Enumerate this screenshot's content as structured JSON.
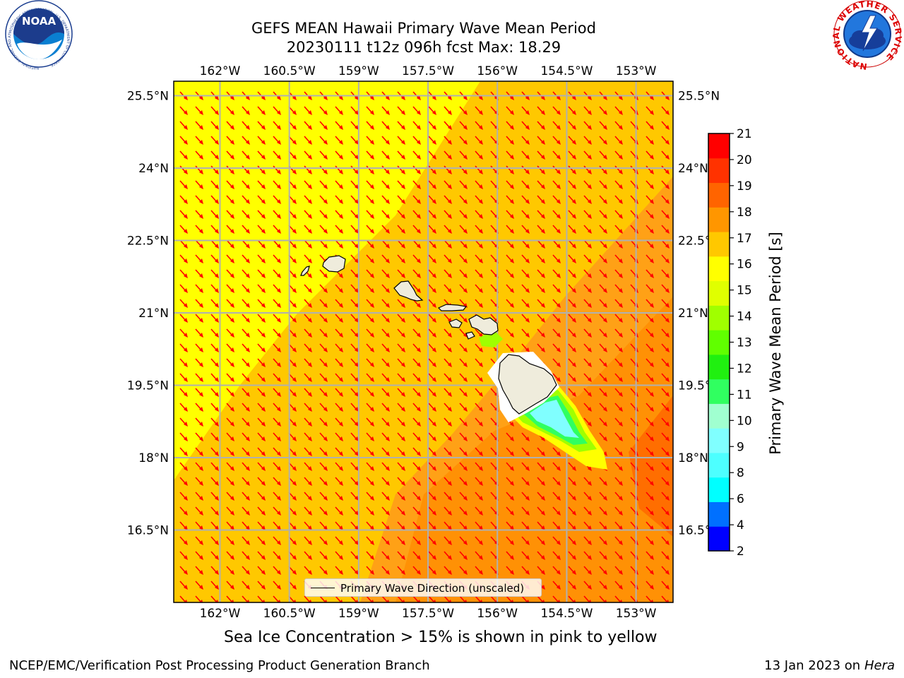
{
  "title": {
    "line1": "GEFS MEAN Hawaii Primary Wave Mean Period",
    "line2": "20230111 t12z 096h fcst   Max: 18.29"
  },
  "map": {
    "lon_labels": [
      "162°W",
      "160.5°W",
      "159°W",
      "157.5°W",
      "156°W",
      "154.5°W",
      "153°W"
    ],
    "lat_labels": [
      "25.5°N",
      "24°N",
      "22.5°N",
      "21°N",
      "19.5°N",
      "18°N",
      "16.5°N"
    ],
    "lon_range": [
      -163.0,
      -152.2
    ],
    "lat_range": [
      15.0,
      25.8
    ],
    "legend_label": "Primary Wave Direction (unscaled)",
    "colors": {
      "land": "#efecdc",
      "arrow": "#ff0000",
      "grid": "#b0b0b0"
    }
  },
  "colorbar": {
    "title": "Primary Wave Mean Period [s]",
    "tick_labels": [
      "2",
      "4",
      "6",
      "8",
      "9",
      "10",
      "11",
      "12",
      "13",
      "14",
      "15",
      "16",
      "17",
      "18",
      "19",
      "20",
      "21"
    ],
    "colors": [
      "#0000ff",
      "#0070ff",
      "#00ffff",
      "#4dffff",
      "#80ffff",
      "#a0ffd0",
      "#30ff60",
      "#20f010",
      "#60ff00",
      "#a0ff00",
      "#e0ff00",
      "#ffff00",
      "#ffc800",
      "#ff9600",
      "#ff6400",
      "#ff3200",
      "#ff0000"
    ]
  },
  "caption": "Sea Ice Concentration > 15% is shown in pink to yellow",
  "footer": {
    "left": "NCEP/EMC/Verification Post Processing Product Generation Branch",
    "right_date": "13 Jan 2023 on ",
    "right_host": "Hera"
  },
  "logos": {
    "noaa_text": "NOAA",
    "noaa_ring": "NATIONAL OCEANIC AND ATMOSPHERIC ADMINISTRATION · U.S. DEPARTMENT OF COMMERCE",
    "nws_ring": "NATIONAL WEATHER SERVICE"
  }
}
